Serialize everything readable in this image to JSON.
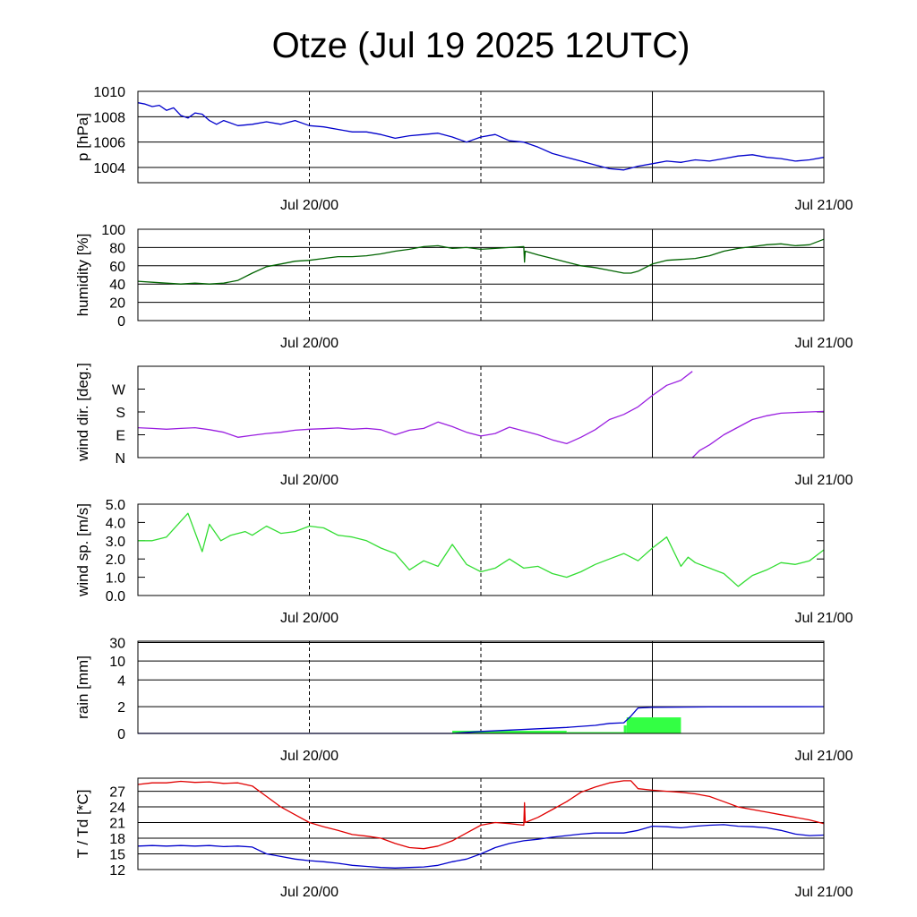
{
  "title": "Otze (Jul 19 2025 12UTC)",
  "x_tick_labels": [
    "Jul 20/00",
    "Jul 21/00"
  ],
  "colors": {
    "pressure": "#0000cc",
    "humidity": "#006400",
    "wind_dir": "#9a1fe0",
    "wind_speed": "#33dd33",
    "rain_bar": "#33ff44",
    "rain_cum": "#0000cc",
    "temperature": "#e00000",
    "dewpoint": "#0000cc"
  },
  "chart_data": [
    {
      "type": "line",
      "ylabel": "p [hPa]",
      "x_unit": "hours after Jul 19 12UTC",
      "ylim": [
        1002.8,
        1010.0
      ],
      "yticks": [
        1004,
        1006,
        1008,
        1010
      ],
      "ytick_labels": [
        "1004",
        "1006",
        "1008",
        "1010"
      ],
      "grid": true,
      "series": [
        {
          "color_key": "pressure",
          "x": [
            0,
            0.5,
            1,
            1.5,
            2,
            2.5,
            3,
            3.5,
            4,
            4.5,
            5,
            5.5,
            6,
            7,
            8,
            9,
            10,
            11,
            12,
            13,
            14,
            15,
            16,
            17,
            18,
            19,
            20,
            21,
            22,
            23,
            24,
            25,
            26,
            27,
            28,
            29,
            30,
            31,
            32,
            33,
            34,
            35,
            36,
            37,
            38,
            39,
            40,
            41,
            42,
            43,
            44,
            45,
            46,
            47,
            48
          ],
          "y": [
            1009.1,
            1009.0,
            1008.8,
            1008.9,
            1008.5,
            1008.7,
            1008.1,
            1007.9,
            1008.3,
            1008.2,
            1007.7,
            1007.4,
            1007.7,
            1007.3,
            1007.4,
            1007.6,
            1007.4,
            1007.7,
            1007.3,
            1007.2,
            1007.0,
            1006.8,
            1006.8,
            1006.6,
            1006.3,
            1006.5,
            1006.6,
            1006.7,
            1006.4,
            1006.0,
            1006.4,
            1006.6,
            1006.1,
            1006.0,
            1005.6,
            1005.1,
            1004.8,
            1004.5,
            1004.2,
            1003.9,
            1003.8,
            1004.1,
            1004.3,
            1004.5,
            1004.4,
            1004.6,
            1004.5,
            1004.7,
            1004.9,
            1005.0,
            1004.8,
            1004.7,
            1004.5,
            1004.6,
            1004.8
          ]
        }
      ]
    },
    {
      "type": "line",
      "ylabel": "humidity [%]",
      "ylim": [
        0,
        100
      ],
      "yticks": [
        0,
        20,
        40,
        60,
        80,
        100
      ],
      "ytick_labels": [
        "0",
        "20",
        "40",
        "60",
        "80",
        "100"
      ],
      "grid": true,
      "series": [
        {
          "color_key": "humidity",
          "x": [
            0,
            1,
            2,
            3,
            4,
            5,
            6,
            7,
            8,
            9,
            10,
            11,
            12,
            13,
            14,
            15,
            16,
            17,
            18,
            19,
            20,
            21,
            22,
            23,
            24,
            25,
            26,
            27,
            27.05,
            27.1,
            28,
            29,
            30,
            31,
            32,
            33,
            34,
            34.5,
            35,
            36,
            37,
            38,
            39,
            40,
            41,
            42,
            43,
            44,
            45,
            46,
            47,
            48
          ],
          "y": [
            43,
            42,
            41,
            40,
            41,
            40,
            41,
            44,
            52,
            59,
            62,
            65,
            66,
            68,
            70,
            70,
            71,
            73,
            76,
            78,
            81,
            82,
            79,
            80,
            78,
            79,
            80,
            81,
            64,
            76,
            72,
            68,
            64,
            60,
            58,
            55,
            52,
            52,
            54,
            62,
            66,
            67,
            68,
            71,
            76,
            79,
            81,
            83,
            84,
            82,
            83,
            89
          ]
        }
      ]
    },
    {
      "type": "line",
      "ylabel": "wind dir. [deg.]",
      "ylim": [
        0,
        360
      ],
      "yticks": [
        0,
        90,
        180,
        270
      ],
      "ytick_labels": [
        "N",
        "E",
        "S",
        "W"
      ],
      "grid": false,
      "series": [
        {
          "color_key": "wind_dir",
          "x": [
            0,
            1,
            2,
            3,
            4,
            5,
            6,
            7,
            8,
            9,
            10,
            11,
            12,
            13,
            14,
            15,
            16,
            17,
            18,
            19,
            20,
            21,
            22,
            23,
            24,
            25,
            26,
            27,
            28,
            29,
            30,
            31,
            32,
            33,
            34,
            35,
            36,
            37,
            38,
            38.8
          ],
          "y": [
            118,
            115,
            112,
            115,
            118,
            110,
            100,
            80,
            88,
            95,
            100,
            108,
            112,
            114,
            117,
            112,
            115,
            110,
            90,
            108,
            115,
            140,
            122,
            100,
            85,
            95,
            120,
            105,
            90,
            70,
            55,
            80,
            110,
            150,
            170,
            200,
            245,
            285,
            305,
            340
          ]
        },
        {
          "color_key": "wind_dir",
          "x": [
            38.8,
            39.3,
            40,
            41,
            42,
            43,
            44,
            45,
            46,
            47,
            48
          ],
          "y": [
            0,
            28,
            50,
            90,
            120,
            150,
            165,
            175,
            178,
            180,
            182
          ]
        }
      ]
    },
    {
      "type": "line",
      "ylabel": "wind sp. [m/s]",
      "ylim": [
        0,
        5
      ],
      "yticks": [
        0,
        1,
        2,
        3,
        4,
        5
      ],
      "ytick_labels": [
        "0.0",
        "1.0",
        "2.0",
        "3.0",
        "4.0",
        "5.0"
      ],
      "grid": false,
      "series": [
        {
          "color_key": "wind_speed",
          "x": [
            0,
            1,
            2,
            3.5,
            4.5,
            5,
            5.8,
            6.5,
            7.5,
            8,
            9,
            10,
            11,
            12,
            13,
            14,
            15,
            16,
            17,
            18,
            19,
            20,
            21,
            22,
            23,
            24,
            25,
            26,
            27,
            28,
            29,
            30,
            31,
            32,
            33,
            34,
            35,
            36,
            37,
            38,
            38.5,
            39,
            40,
            41,
            42,
            43,
            44,
            45,
            46,
            47,
            48
          ],
          "y": [
            3.0,
            3.0,
            3.2,
            4.5,
            2.4,
            3.9,
            3.0,
            3.3,
            3.5,
            3.3,
            3.8,
            3.4,
            3.5,
            3.8,
            3.7,
            3.3,
            3.2,
            3.0,
            2.6,
            2.3,
            1.4,
            1.9,
            1.6,
            2.8,
            1.7,
            1.3,
            1.5,
            2.0,
            1.5,
            1.6,
            1.2,
            1.0,
            1.3,
            1.7,
            2.0,
            2.3,
            1.9,
            2.6,
            3.2,
            1.6,
            2.1,
            1.8,
            1.5,
            1.2,
            0.5,
            1.1,
            1.4,
            1.8,
            1.7,
            1.9,
            2.5
          ]
        }
      ]
    },
    {
      "type": "bar",
      "ylabel": "rain [mm]",
      "yticks": [
        0,
        2,
        4,
        10,
        30
      ],
      "ytick_labels": [
        "0",
        "2",
        "4",
        "10",
        "30"
      ],
      "grid": true,
      "bars": {
        "color_key": "rain_bar",
        "x_start": [
          22,
          30,
          34,
          34.2
        ],
        "x_end": [
          30,
          34,
          34.2,
          38
        ],
        "values": [
          0.2,
          0.1,
          0.6,
          1.2
        ]
      },
      "series": [
        {
          "color_key": "rain_cum",
          "x": [
            0,
            22,
            24,
            26,
            28,
            30,
            32,
            33,
            34,
            34.5,
            35,
            36,
            40,
            48
          ],
          "y": [
            0,
            0,
            0.15,
            0.25,
            0.35,
            0.45,
            0.6,
            0.75,
            0.8,
            1.3,
            1.9,
            1.95,
            1.98,
            2.0
          ]
        }
      ]
    },
    {
      "type": "line",
      "ylabel": "T / Td [*C]",
      "ylim": [
        12,
        29.5
      ],
      "yticks": [
        12,
        15,
        18,
        21,
        24,
        27
      ],
      "ytick_labels": [
        "12",
        "15",
        "18",
        "21",
        "24",
        "27"
      ],
      "grid": true,
      "series": [
        {
          "color_key": "temperature",
          "x": [
            0,
            1,
            2,
            3,
            4,
            5,
            6,
            7,
            8,
            9,
            10,
            11,
            12,
            13,
            14,
            15,
            16,
            17,
            18,
            19,
            20,
            21,
            22,
            23,
            24,
            25,
            26,
            27,
            27.05,
            27.1,
            28,
            29,
            30,
            31,
            32,
            33,
            34,
            34.5,
            35,
            36,
            37,
            38,
            39,
            40,
            41,
            42,
            43,
            44,
            45,
            46,
            47,
            48
          ],
          "y": [
            28.3,
            28.6,
            28.6,
            28.9,
            28.7,
            28.8,
            28.5,
            28.6,
            28.0,
            26.0,
            24.0,
            22.5,
            21.0,
            20.2,
            19.5,
            18.7,
            18.4,
            18.0,
            17.0,
            16.2,
            16.0,
            16.5,
            17.5,
            19.0,
            20.5,
            21.0,
            20.8,
            20.5,
            24.8,
            21.0,
            22.0,
            23.5,
            25.0,
            26.8,
            27.8,
            28.6,
            29.0,
            29.0,
            27.5,
            27.2,
            27.0,
            26.8,
            26.5,
            26.0,
            25.0,
            24.0,
            23.5,
            23.0,
            22.5,
            22.0,
            21.5,
            20.8
          ]
        },
        {
          "color_key": "dewpoint",
          "x": [
            0,
            1,
            2,
            3,
            4,
            5,
            6,
            7,
            8,
            9,
            10,
            11,
            12,
            13,
            14,
            15,
            16,
            17,
            18,
            19,
            20,
            21,
            22,
            23,
            24,
            25,
            26,
            27,
            28,
            29,
            30,
            31,
            32,
            33,
            34,
            35,
            36,
            37,
            38,
            39,
            40,
            41,
            42,
            43,
            44,
            45,
            46,
            47,
            48
          ],
          "y": [
            16.5,
            16.6,
            16.5,
            16.6,
            16.5,
            16.6,
            16.4,
            16.5,
            16.3,
            15.0,
            14.5,
            14.0,
            13.7,
            13.5,
            13.2,
            12.8,
            12.6,
            12.4,
            12.3,
            12.4,
            12.5,
            12.8,
            13.5,
            14.0,
            15.0,
            16.2,
            17.0,
            17.5,
            17.8,
            18.2,
            18.5,
            18.8,
            19.0,
            19.0,
            19.0,
            19.5,
            20.3,
            20.2,
            20.0,
            20.3,
            20.5,
            20.6,
            20.3,
            20.2,
            20.0,
            19.5,
            18.8,
            18.5,
            18.6
          ]
        }
      ]
    }
  ]
}
